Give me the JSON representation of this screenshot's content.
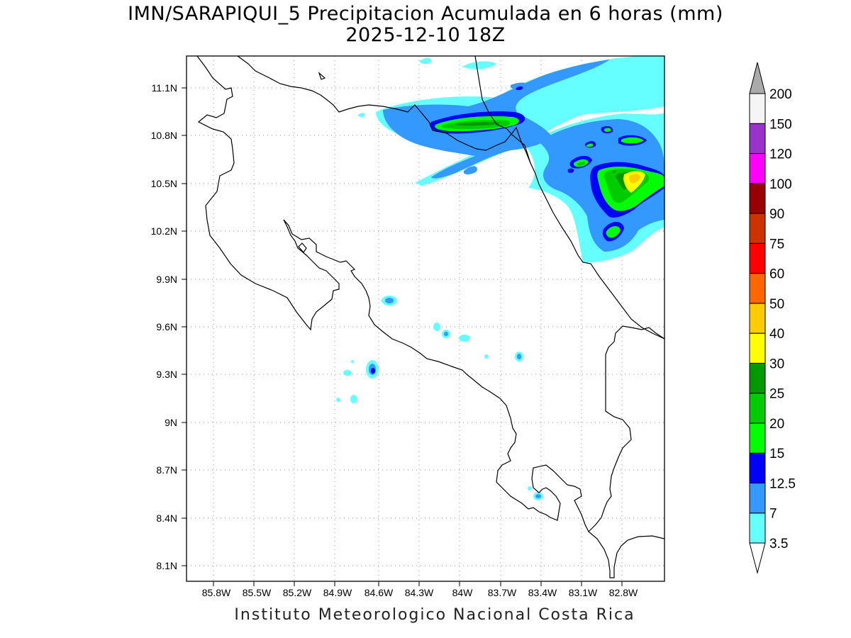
{
  "title": {
    "line1": "IMN/SARAPIQUI_5 Precipitacion Acumulada en 6 horas (mm)",
    "line2": "2025-12-10 18Z"
  },
  "footer": "Instituto Meteorologico Nacional Costa Rica",
  "map": {
    "lon_ticks": [
      "85.8W",
      "85.5W",
      "85.2W",
      "84.9W",
      "84.6W",
      "84.3W",
      "84W",
      "83.7W",
      "83.4W",
      "83.1W",
      "82.8W"
    ],
    "lat_ticks": [
      "11.1N",
      "10.8N",
      "10.5N",
      "10.2N",
      "9.9N",
      "9.6N",
      "9.3N",
      "9N",
      "8.7N",
      "8.4N",
      "8.1N"
    ],
    "grid": "dotted"
  },
  "colorbar": {
    "labels": [
      "3.5",
      "7",
      "12.5",
      "15",
      "20",
      "25",
      "30",
      "40",
      "50",
      "60",
      "75",
      "90",
      "100",
      "120",
      "150",
      "200"
    ],
    "colors": [
      "#66ffff",
      "#3399ff",
      "#0000ff",
      "#00ff00",
      "#00cc00",
      "#009900",
      "#ffff00",
      "#ffcc00",
      "#ff6600",
      "#ff0000",
      "#cc3300",
      "#990000",
      "#ff00ff",
      "#9933cc",
      "#f5f5f5",
      "#aaaaaa"
    ]
  }
}
